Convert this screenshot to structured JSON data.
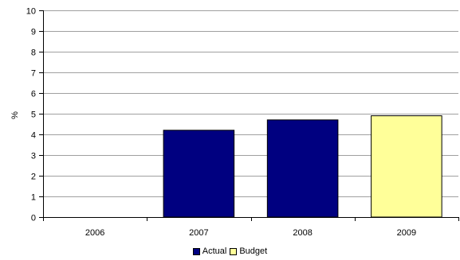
{
  "chart_data": {
    "type": "bar",
    "categories": [
      "2006",
      "2007",
      "2008",
      "2009"
    ],
    "series": [
      {
        "name": "Actual",
        "values": [
          null,
          4.2,
          4.7,
          null
        ],
        "color": "#000080"
      },
      {
        "name": "Budget",
        "values": [
          null,
          null,
          null,
          4.9
        ],
        "color": "#FFFF99"
      }
    ],
    "ylabel": "%",
    "ylim": [
      0,
      10
    ],
    "yticks": [
      "0",
      "1",
      "2",
      "3",
      "4",
      "5",
      "6",
      "7",
      "8",
      "9",
      "10"
    ],
    "grid": true,
    "legend_position": "bottom"
  }
}
